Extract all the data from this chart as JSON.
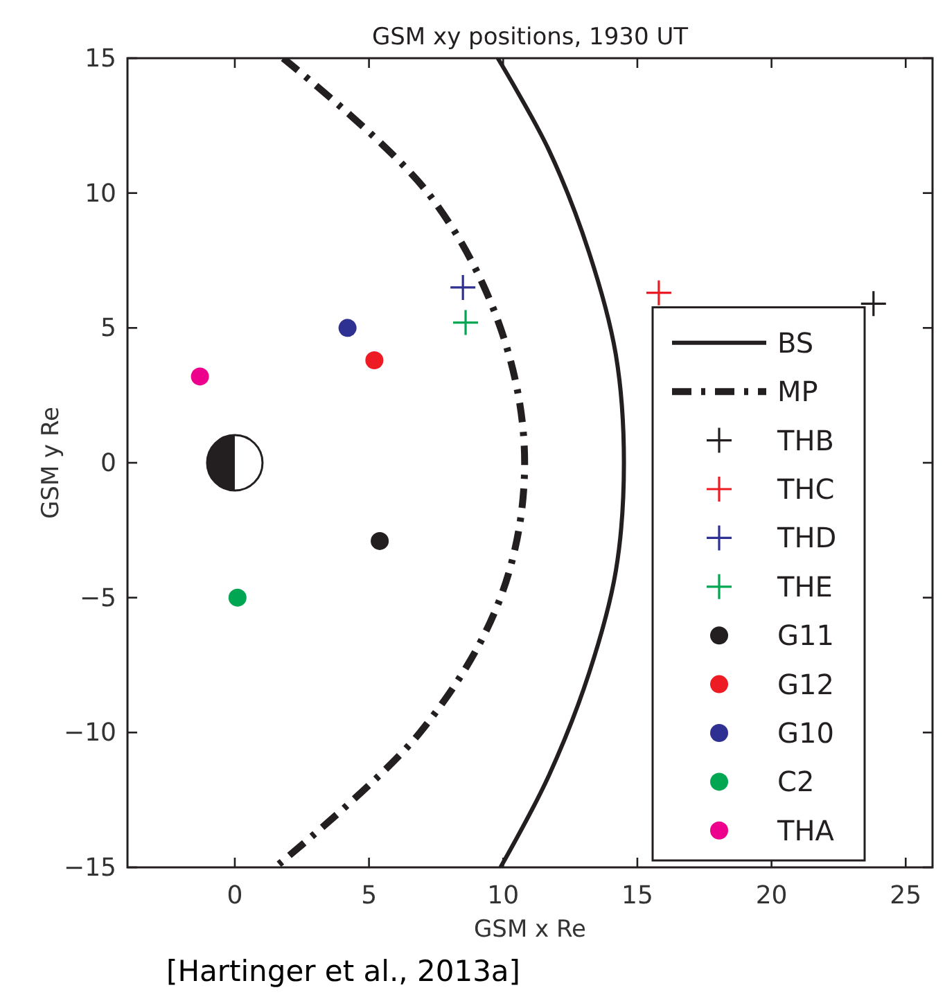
{
  "chart_data": {
    "type": "scatter",
    "title": "GSM xy positions, 1930 UT",
    "xlabel": "GSM x Re",
    "ylabel": "GSM y Re",
    "xlim": [
      -4,
      26
    ],
    "ylim": [
      -15,
      15
    ],
    "xticks": [
      0,
      5,
      10,
      15,
      20,
      25
    ],
    "yticks": [
      -15,
      -10,
      -5,
      0,
      5,
      10,
      15
    ],
    "grid": false,
    "legend": "bottom right",
    "annotations": [
      "[Hartinger et al., 2013a]"
    ],
    "series": [
      {
        "name": "BS",
        "type": "line",
        "line_style": "solid",
        "color": "#231f20",
        "x": [
          9.8,
          11.7,
          13.2,
          14.2,
          14.5,
          14.2,
          13.2,
          11.7,
          9.9
        ],
        "values": [
          15,
          11.6,
          7.8,
          4,
          0,
          -4,
          -7.8,
          -11.6,
          -15
        ]
      },
      {
        "name": "MP",
        "type": "line",
        "line_style": "dashdot",
        "color": "#231f20",
        "x": [
          1.8,
          7.2,
          9.9,
          10.8,
          9.9,
          6.9,
          1.5
        ],
        "values": [
          15,
          10,
          5,
          0,
          -5,
          -10,
          -15
        ]
      },
      {
        "name": "THB",
        "marker": "cross",
        "color": "#231f20",
        "x": [
          23.8
        ],
        "values": [
          5.9
        ]
      },
      {
        "name": "THC",
        "marker": "cross",
        "color": "#ed1c24",
        "x": [
          15.8
        ],
        "values": [
          6.3
        ]
      },
      {
        "name": "THD",
        "marker": "cross",
        "color": "#2e3192",
        "x": [
          8.5
        ],
        "values": [
          6.5
        ]
      },
      {
        "name": "THE",
        "marker": "cross",
        "color": "#00a651",
        "x": [
          8.6
        ],
        "values": [
          5.2
        ]
      },
      {
        "name": "G11",
        "marker": "circle",
        "color": "#231f20",
        "x": [
          5.4
        ],
        "values": [
          -2.9
        ]
      },
      {
        "name": "G12",
        "marker": "circle",
        "color": "#ed1c24",
        "x": [
          5.2
        ],
        "values": [
          3.8
        ]
      },
      {
        "name": "G10",
        "marker": "circle",
        "color": "#2e3192",
        "x": [
          4.2
        ],
        "values": [
          5.0
        ]
      },
      {
        "name": "C2",
        "marker": "circle",
        "color": "#00a651",
        "x": [
          0.1
        ],
        "values": [
          -5.0
        ]
      },
      {
        "name": "THA",
        "marker": "circle",
        "color": "#ec008c",
        "x": [
          -1.3
        ],
        "values": [
          3.2
        ]
      }
    ]
  }
}
